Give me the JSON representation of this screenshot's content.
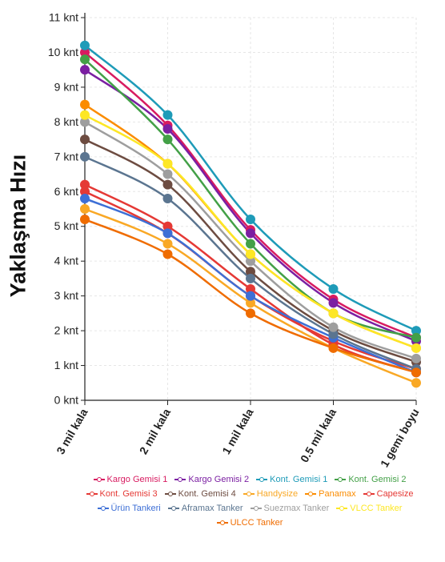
{
  "chart_data": {
    "type": "line",
    "ylabel": "Yaklaşma Hızı",
    "xlabel": "",
    "categories": [
      "3 mil kala",
      "2 mil kala",
      "1 mil kala",
      "0.5 mil kala",
      "1 gemi boyu"
    ],
    "y_ticks": [
      "0 knt",
      "1 knt",
      "2 knt",
      "3 knt",
      "4 knt",
      "5 knt",
      "6 knt",
      "7 knt",
      "8 knt",
      "9 knt",
      "10 knt",
      "11 knt"
    ],
    "ylim": [
      0,
      11
    ],
    "grid": true,
    "legend_position": "bottom",
    "series": [
      {
        "name": "Kargo Gemisi 1",
        "color": "#d81b60",
        "values": [
          10.0,
          7.9,
          4.9,
          2.9,
          1.8
        ]
      },
      {
        "name": "Kargo Gemisi 2",
        "color": "#7b1fa2",
        "values": [
          9.5,
          7.8,
          4.8,
          2.8,
          1.7
        ]
      },
      {
        "name": "Kont. Gemisi 1",
        "color": "#1e9bb8",
        "values": [
          10.2,
          8.2,
          5.2,
          3.2,
          2.0
        ]
      },
      {
        "name": "Kont. Gemisi 2",
        "color": "#43a047",
        "values": [
          9.8,
          7.5,
          4.5,
          2.5,
          1.8
        ]
      },
      {
        "name": "Kont. Gemisi 3",
        "color": "#e53935",
        "values": [
          6.2,
          5.0,
          3.2,
          1.6,
          0.8
        ]
      },
      {
        "name": "Kont. Gemisi 4",
        "color": "#6d4c41",
        "values": [
          7.5,
          6.2,
          3.7,
          2.0,
          1.1
        ]
      },
      {
        "name": "Handysize",
        "color": "#f9a825",
        "values": [
          5.5,
          4.5,
          2.8,
          1.5,
          0.5
        ]
      },
      {
        "name": "Panamax",
        "color": "#fb8c00",
        "values": [
          8.5,
          6.8,
          4.2,
          2.5,
          1.5
        ]
      },
      {
        "name": "Capesize",
        "color": "#e53935",
        "values": [
          6.0,
          4.8,
          3.0,
          1.7,
          0.9
        ]
      },
      {
        "name": "Ürün Tankeri",
        "color": "#3d6fd6",
        "values": [
          5.8,
          4.8,
          3.0,
          1.8,
          0.8
        ]
      },
      {
        "name": "Aframax Tanker",
        "color": "#5b7590",
        "values": [
          7.0,
          5.8,
          3.5,
          1.9,
          0.9
        ]
      },
      {
        "name": "Suezmax Tanker",
        "color": "#9e9e9e",
        "values": [
          8.0,
          6.5,
          4.0,
          2.1,
          1.2
        ]
      },
      {
        "name": "VLCC Tanker",
        "color": "#fde725",
        "values": [
          8.2,
          6.8,
          4.2,
          2.5,
          1.5
        ]
      },
      {
        "name": "ULCC Tanker",
        "color": "#ef6c00",
        "values": [
          5.2,
          4.2,
          2.5,
          1.5,
          0.8
        ]
      }
    ],
    "legend_rows": [
      [
        0,
        1,
        2,
        3
      ],
      [
        4,
        5,
        6,
        7,
        8
      ],
      [
        9,
        10,
        11,
        12
      ],
      [
        13
      ]
    ]
  }
}
